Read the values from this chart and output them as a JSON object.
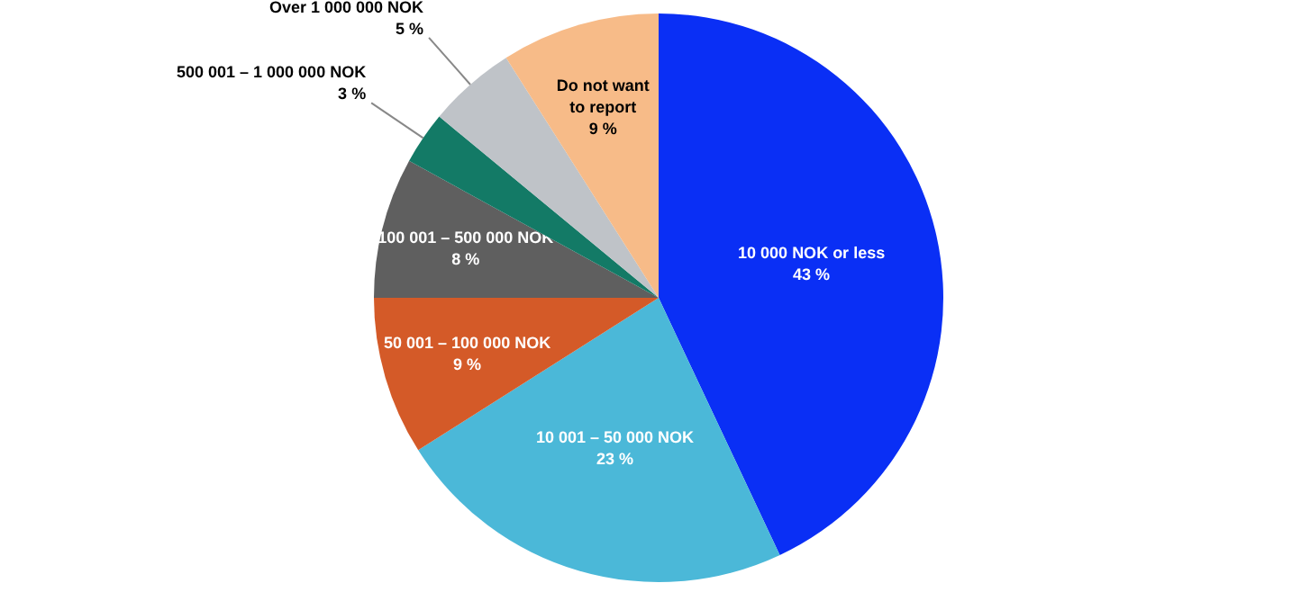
{
  "chart_data": {
    "type": "pie",
    "categories": [
      "10 000 NOK or less",
      "10 001 – 50 000 NOK",
      "50 001 – 100 000 NOK",
      "100 001 – 500 000 NOK",
      "500 001 – 1 000 000 NOK",
      "Over 1 000 000 NOK",
      "Do not want to report"
    ],
    "values": [
      43,
      23,
      9,
      8,
      3,
      5,
      9
    ],
    "colors": [
      "#0a2ff5",
      "#4bb8d8",
      "#d45a28",
      "#5f5f5f",
      "#137a66",
      "#bfc3c8",
      "#f7bb88"
    ],
    "value_labels": [
      "43 %",
      "23 %",
      "9 %",
      "8 %",
      "3 %",
      "5 %",
      "9 %"
    ]
  }
}
